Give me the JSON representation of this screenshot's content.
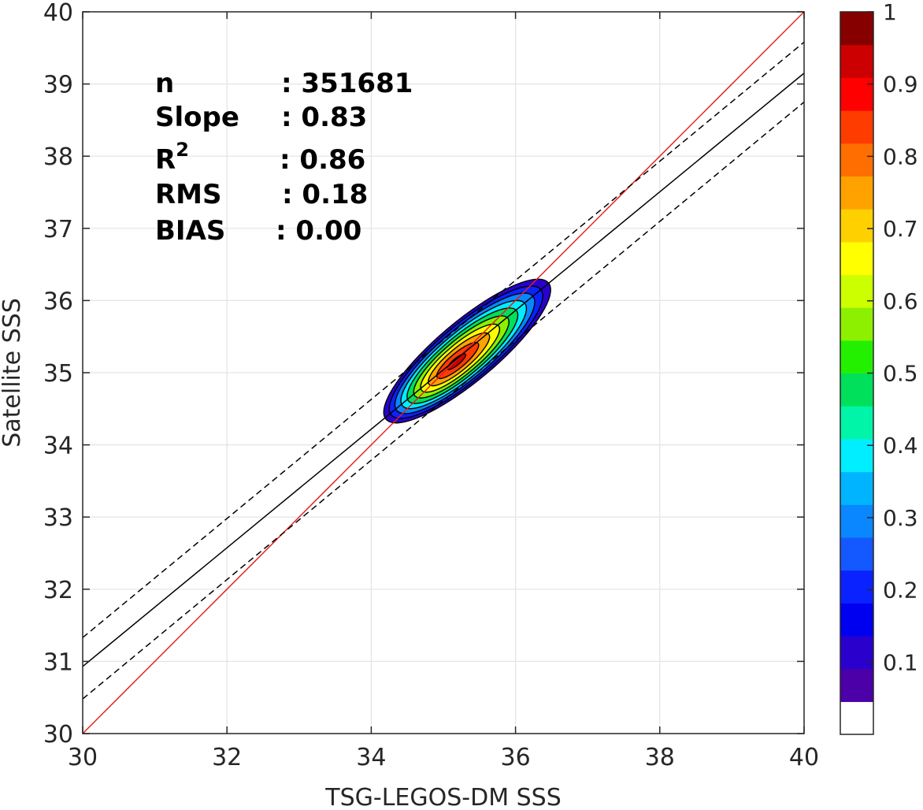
{
  "chart_data": {
    "type": "scatter",
    "subtype": "density-contour",
    "title": "",
    "xlabel": "TSG-LEGOS-DM SSS",
    "ylabel": "Satellite SSS",
    "xlim": [
      30,
      40
    ],
    "ylim": [
      30,
      40
    ],
    "xticks": [
      "30",
      "32",
      "34",
      "36",
      "38",
      "40"
    ],
    "yticks": [
      "30",
      "31",
      "32",
      "33",
      "34",
      "35",
      "36",
      "37",
      "38",
      "39",
      "40"
    ],
    "grid": true,
    "stats": [
      {
        "label": "n",
        "value": ": 351681"
      },
      {
        "label": "Slope",
        "value": ": 0.83"
      },
      {
        "label": "R",
        "sup": "2",
        "value": ": 0.86"
      },
      {
        "label": "RMS",
        "value": ": 0.18"
      },
      {
        "label": "BIAS",
        "value": ": 0.00"
      }
    ],
    "lines": [
      {
        "name": "one-to-one",
        "color": "#e02020",
        "style": "solid",
        "x": [
          30,
          40
        ],
        "y": [
          30,
          40
        ]
      },
      {
        "name": "regression",
        "color": "#000000",
        "style": "solid",
        "x": [
          30,
          40
        ],
        "y": [
          30.93,
          39.15
        ]
      },
      {
        "name": "upper-bound",
        "color": "#000000",
        "style": "dashed",
        "x": [
          30,
          40
        ],
        "y": [
          31.33,
          39.58
        ]
      },
      {
        "name": "lower-bound",
        "color": "#000000",
        "style": "dashed",
        "x": [
          30,
          40
        ],
        "y": [
          30.48,
          38.75
        ]
      }
    ],
    "density": {
      "center": [
        35.33,
        35.3
      ],
      "outer_extent_x": [
        34.15,
        36.35
      ],
      "outer_extent_y": [
        34.3,
        36.25
      ],
      "levels": [
        0.05,
        0.15,
        0.25,
        0.35,
        0.45,
        0.55,
        0.65,
        0.75,
        0.85,
        0.95
      ]
    },
    "colorbar": {
      "range": [
        0,
        1
      ],
      "ticks": [
        "0.1",
        "0.2",
        "0.3",
        "0.4",
        "0.5",
        "0.6",
        "0.7",
        "0.8",
        "0.9",
        "1"
      ],
      "colors": [
        "#ffffff",
        "#4b00a8",
        "#2a00cc",
        "#0000f0",
        "#0a22ff",
        "#1458ff",
        "#0a86ff",
        "#00b4ff",
        "#00eeff",
        "#00f5a8",
        "#00e05a",
        "#22f000",
        "#8cf000",
        "#ccff00",
        "#ffff00",
        "#ffd000",
        "#ffa200",
        "#ff6e00",
        "#ff3c00",
        "#ff0000",
        "#cc0000",
        "#870000"
      ]
    }
  }
}
